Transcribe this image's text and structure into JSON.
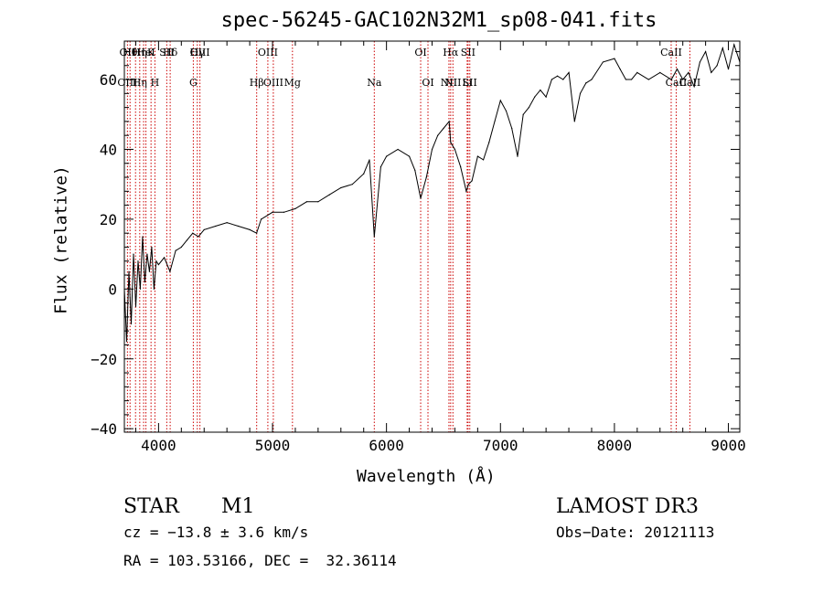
{
  "chart_data": {
    "type": "line",
    "title": "spec-56245-GAC102N32M1_sp08-041.fits",
    "xlabel": "Wavelength (Å)",
    "ylabel": "Flux (relative)",
    "xlim": [
      3700,
      9100
    ],
    "ylim": [
      -41,
      71
    ],
    "xticks": [
      4000,
      5000,
      6000,
      7000,
      8000,
      9000
    ],
    "yticks": [
      -40,
      -20,
      0,
      20,
      40,
      60
    ],
    "grid": false,
    "line_color": "#000000",
    "marker_color": "#cc0000",
    "series": [
      {
        "name": "flux",
        "x": [
          3700,
          3720,
          3740,
          3760,
          3780,
          3800,
          3820,
          3840,
          3860,
          3880,
          3900,
          3920,
          3940,
          3960,
          3980,
          4000,
          4050,
          4100,
          4150,
          4200,
          4250,
          4300,
          4350,
          4400,
          4500,
          4600,
          4700,
          4800,
          4860,
          4900,
          5000,
          5100,
          5200,
          5300,
          5400,
          5500,
          5600,
          5700,
          5800,
          5850,
          5893,
          5950,
          6000,
          6100,
          6200,
          6250,
          6300,
          6350,
          6400,
          6450,
          6500,
          6550,
          6563,
          6600,
          6650,
          6700,
          6720,
          6750,
          6800,
          6850,
          6900,
          6950,
          7000,
          7050,
          7100,
          7150,
          7200,
          7250,
          7300,
          7350,
          7400,
          7450,
          7500,
          7550,
          7600,
          7650,
          7700,
          7750,
          7800,
          7900,
          8000,
          8050,
          8100,
          8150,
          8200,
          8300,
          8400,
          8500,
          8550,
          8600,
          8650,
          8700,
          8750,
          8800,
          8850,
          8900,
          8950,
          9000,
          9050,
          9100
        ],
        "y": [
          0,
          -15,
          5,
          -10,
          10,
          -5,
          8,
          0,
          15,
          2,
          10,
          5,
          12,
          0,
          8,
          7,
          9,
          5,
          11,
          12,
          14,
          16,
          15,
          17,
          18,
          19,
          18,
          17,
          16,
          20,
          22,
          22,
          23,
          25,
          25,
          27,
          29,
          30,
          33,
          37,
          15,
          35,
          38,
          40,
          38,
          34,
          26,
          32,
          40,
          44,
          46,
          48,
          42,
          40,
          35,
          28,
          30,
          31,
          38,
          37,
          42,
          48,
          54,
          51,
          46,
          38,
          50,
          52,
          55,
          57,
          55,
          60,
          61,
          60,
          62,
          48,
          56,
          59,
          60,
          65,
          66,
          63,
          60,
          60,
          62,
          60,
          62,
          60,
          63,
          60,
          62,
          58,
          65,
          68,
          62,
          64,
          69,
          63,
          70,
          65
        ]
      }
    ],
    "line_markers": [
      {
        "x": 3727,
        "top": "OII",
        "bottom": "OIII"
      },
      {
        "x": 3750,
        "top": "Hθ",
        "bottom": ""
      },
      {
        "x": 3798,
        "top": "",
        "bottom": ""
      },
      {
        "x": 3835,
        "top": "Hη",
        "bottom": "Hη"
      },
      {
        "x": 3869,
        "top": "",
        "bottom": ""
      },
      {
        "x": 3889,
        "top": "HeI",
        "bottom": ""
      },
      {
        "x": 3934,
        "top": "K",
        "bottom": ""
      },
      {
        "x": 3968,
        "top": "",
        "bottom": "H"
      },
      {
        "x": 4072,
        "top": "SII",
        "bottom": ""
      },
      {
        "x": 4102,
        "top": "Hδ",
        "bottom": ""
      },
      {
        "x": 4305,
        "top": "",
        "bottom": "G"
      },
      {
        "x": 4340,
        "top": "Hγ",
        "bottom": ""
      },
      {
        "x": 4363,
        "top": "OIII",
        "bottom": ""
      },
      {
        "x": 4861,
        "top": "",
        "bottom": "Hβ"
      },
      {
        "x": 4959,
        "top": "OIII",
        "bottom": ""
      },
      {
        "x": 5007,
        "top": "",
        "bottom": "OIII"
      },
      {
        "x": 5175,
        "top": "",
        "bottom": "Mg"
      },
      {
        "x": 5893,
        "top": "",
        "bottom": "Na"
      },
      {
        "x": 6300,
        "top": "OI",
        "bottom": ""
      },
      {
        "x": 6364,
        "top": "",
        "bottom": "OI"
      },
      {
        "x": 6548,
        "top": "",
        "bottom": "NII"
      },
      {
        "x": 6563,
        "top": "Hα",
        "bottom": ""
      },
      {
        "x": 6583,
        "top": "",
        "bottom": "NII"
      },
      {
        "x": 6708,
        "top": "",
        "bottom": "Li"
      },
      {
        "x": 6716,
        "top": "SII",
        "bottom": ""
      },
      {
        "x": 6731,
        "top": "",
        "bottom": "SII"
      },
      {
        "x": 8498,
        "top": "CaII",
        "bottom": ""
      },
      {
        "x": 8542,
        "top": "",
        "bottom": "CaII"
      },
      {
        "x": 8662,
        "top": "",
        "bottom": "CaII"
      }
    ]
  },
  "info": {
    "object_type": "STAR",
    "subclass": "M1",
    "survey": "LAMOST DR3",
    "cz": "cz = −13.8 ± 3.6 km/s",
    "obs_date": "Obs−Date: 20121113",
    "coords": "RA = 103.53166, DEC =  32.36114"
  }
}
